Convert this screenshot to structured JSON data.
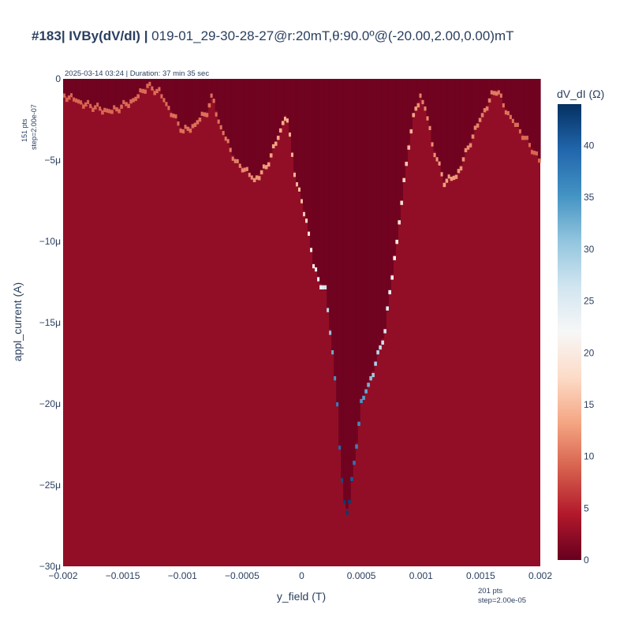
{
  "chart_data": {
    "type": "heatmap",
    "title": {
      "prefix": "#183| IVBy(dV/dI) |",
      "suffix": " 019-01_29-30-28-27@r:20mT,θ:90.0º@(-20.00,2.00,0.00)mT"
    },
    "subtitle": "2025-03-14 03:24 | Duration: 37 min 35 sec",
    "xlabel": "y_field (T)",
    "ylabel": "appl_current (A)",
    "colorbar_title": "dV_dI (Ω)",
    "x_range": [
      -0.002,
      0.002
    ],
    "y_range": [
      -3e-05,
      0
    ],
    "x_ticks": [
      "−0.002",
      "−0.0015",
      "−0.001",
      "−0.0005",
      "0",
      "0.0005",
      "0.001",
      "0.0015",
      "0.002"
    ],
    "x_tick_values": [
      -0.002,
      -0.0015,
      -0.001,
      -0.0005,
      0,
      0.0005,
      0.001,
      0.0015,
      0.002
    ],
    "y_ticks": [
      "0",
      "−5μ",
      "−10μ",
      "−15μ",
      "−20μ",
      "−25μ",
      "−30μ"
    ],
    "y_tick_values": [
      0,
      -5e-06,
      -1e-05,
      -1.5e-05,
      -2e-05,
      -2.5e-05,
      -3e-05
    ],
    "colorbar_range": [
      0,
      44
    ],
    "colorbar_ticks": [
      "0",
      "5",
      "10",
      "15",
      "20",
      "25",
      "30",
      "35",
      "40"
    ],
    "colorbar_tick_values": [
      0,
      5,
      10,
      15,
      20,
      25,
      30,
      35,
      40
    ],
    "colorscale": "RdBu",
    "colorscale_stops": [
      "#67001f",
      "#b2182b",
      "#d6604d",
      "#f4a582",
      "#fddbc7",
      "#f7f7f7",
      "#d1e5f0",
      "#92c5de",
      "#4393c3",
      "#2166ac",
      "#053061"
    ],
    "x_points_label": "201 pts",
    "x_step_label": "step=2.00e-05",
    "y_points_label": "151 pts",
    "y_step_label": "step=2.00e-07",
    "x_points": 201,
    "y_points": 151,
    "background_value": 2.5,
    "inner_value": 0.5,
    "boundary": [
      {
        "x": -0.002,
        "y": -1e-06
      },
      {
        "x": -0.0018,
        "y": -1.6e-06
      },
      {
        "x": -0.0016,
        "y": -2e-06
      },
      {
        "x": -0.0014,
        "y": -1.2e-06
      },
      {
        "x": -0.0013,
        "y": -4e-07
      },
      {
        "x": -0.0012,
        "y": -8e-07
      },
      {
        "x": -0.0011,
        "y": -2e-06
      },
      {
        "x": -0.001,
        "y": -3.2e-06
      },
      {
        "x": -0.0009,
        "y": -2.8e-06
      },
      {
        "x": -0.0008,
        "y": -2e-06
      },
      {
        "x": -0.00075,
        "y": -1e-06
      },
      {
        "x": -0.0007,
        "y": -2.6e-06
      },
      {
        "x": -0.00062,
        "y": -4e-06
      },
      {
        "x": -0.00055,
        "y": -5.2e-06
      },
      {
        "x": -0.0005,
        "y": -5.4e-06
      },
      {
        "x": -0.0004,
        "y": -6.2e-06
      },
      {
        "x": -0.0003,
        "y": -5.4e-06
      },
      {
        "x": -0.0002,
        "y": -3.6e-06
      },
      {
        "x": -0.00013,
        "y": -2e-06
      },
      {
        "x": -0.0001,
        "y": -3.6e-06
      },
      {
        "x": -5e-05,
        "y": -6.2e-06
      },
      {
        "x": 0.0,
        "y": -7.5e-06
      },
      {
        "x": 5e-05,
        "y": -9e-06
      },
      {
        "x": 0.0001,
        "y": -1.15e-05
      },
      {
        "x": 0.00015,
        "y": -1.25e-05
      },
      {
        "x": 0.0002,
        "y": -1.3e-05
      },
      {
        "x": 0.00025,
        "y": -1.6e-05
      },
      {
        "x": 0.0003,
        "y": -2e-05
      },
      {
        "x": 0.00033,
        "y": -2.4e-05
      },
      {
        "x": 0.00037,
        "y": -2.67e-05
      },
      {
        "x": 0.0004,
        "y": -2.6e-05
      },
      {
        "x": 0.00045,
        "y": -2.3e-05
      },
      {
        "x": 0.0005,
        "y": -2e-05
      },
      {
        "x": 0.0006,
        "y": -1.8e-05
      },
      {
        "x": 0.0007,
        "y": -1.55e-05
      },
      {
        "x": 0.00075,
        "y": -1.25e-05
      },
      {
        "x": 0.0008,
        "y": -1e-05
      },
      {
        "x": 0.00085,
        "y": -7e-06
      },
      {
        "x": 0.0009,
        "y": -4e-06
      },
      {
        "x": 0.00095,
        "y": -2e-06
      },
      {
        "x": 0.001,
        "y": -1e-06
      },
      {
        "x": 0.00105,
        "y": -2e-06
      },
      {
        "x": 0.0011,
        "y": -4e-06
      },
      {
        "x": 0.0012,
        "y": -6.3e-06
      },
      {
        "x": 0.0013,
        "y": -6e-06
      },
      {
        "x": 0.0014,
        "y": -4.2e-06
      },
      {
        "x": 0.0015,
        "y": -2.5e-06
      },
      {
        "x": 0.0016,
        "y": -1e-06
      },
      {
        "x": 0.00165,
        "y": -6e-07
      },
      {
        "x": 0.0017,
        "y": -1.6e-06
      },
      {
        "x": 0.0018,
        "y": -2.8e-06
      },
      {
        "x": 0.0019,
        "y": -3.8e-06
      },
      {
        "x": 0.002,
        "y": -5e-06
      }
    ],
    "edge_values": [
      {
        "x": -0.002,
        "value": 9
      },
      {
        "x": -0.0007,
        "value": 10
      },
      {
        "x": -0.0004,
        "value": 12
      },
      {
        "x": 0.0,
        "value": 15
      },
      {
        "x": 0.00012,
        "value": 22
      },
      {
        "x": 0.0002,
        "value": 26
      },
      {
        "x": 0.00025,
        "value": 32
      },
      {
        "x": 0.0003,
        "value": 37
      },
      {
        "x": 0.00035,
        "value": 43
      },
      {
        "x": 0.0004,
        "value": 43
      },
      {
        "x": 0.00045,
        "value": 37
      },
      {
        "x": 0.00055,
        "value": 33
      },
      {
        "x": 0.0006,
        "value": 30
      },
      {
        "x": 0.0007,
        "value": 26
      },
      {
        "x": 0.0008,
        "value": 20
      },
      {
        "x": 0.0009,
        "value": 15
      },
      {
        "x": 0.001,
        "value": 11
      },
      {
        "x": 0.0012,
        "value": 13
      },
      {
        "x": 0.0015,
        "value": 11
      },
      {
        "x": 0.002,
        "value": 9
      }
    ]
  }
}
